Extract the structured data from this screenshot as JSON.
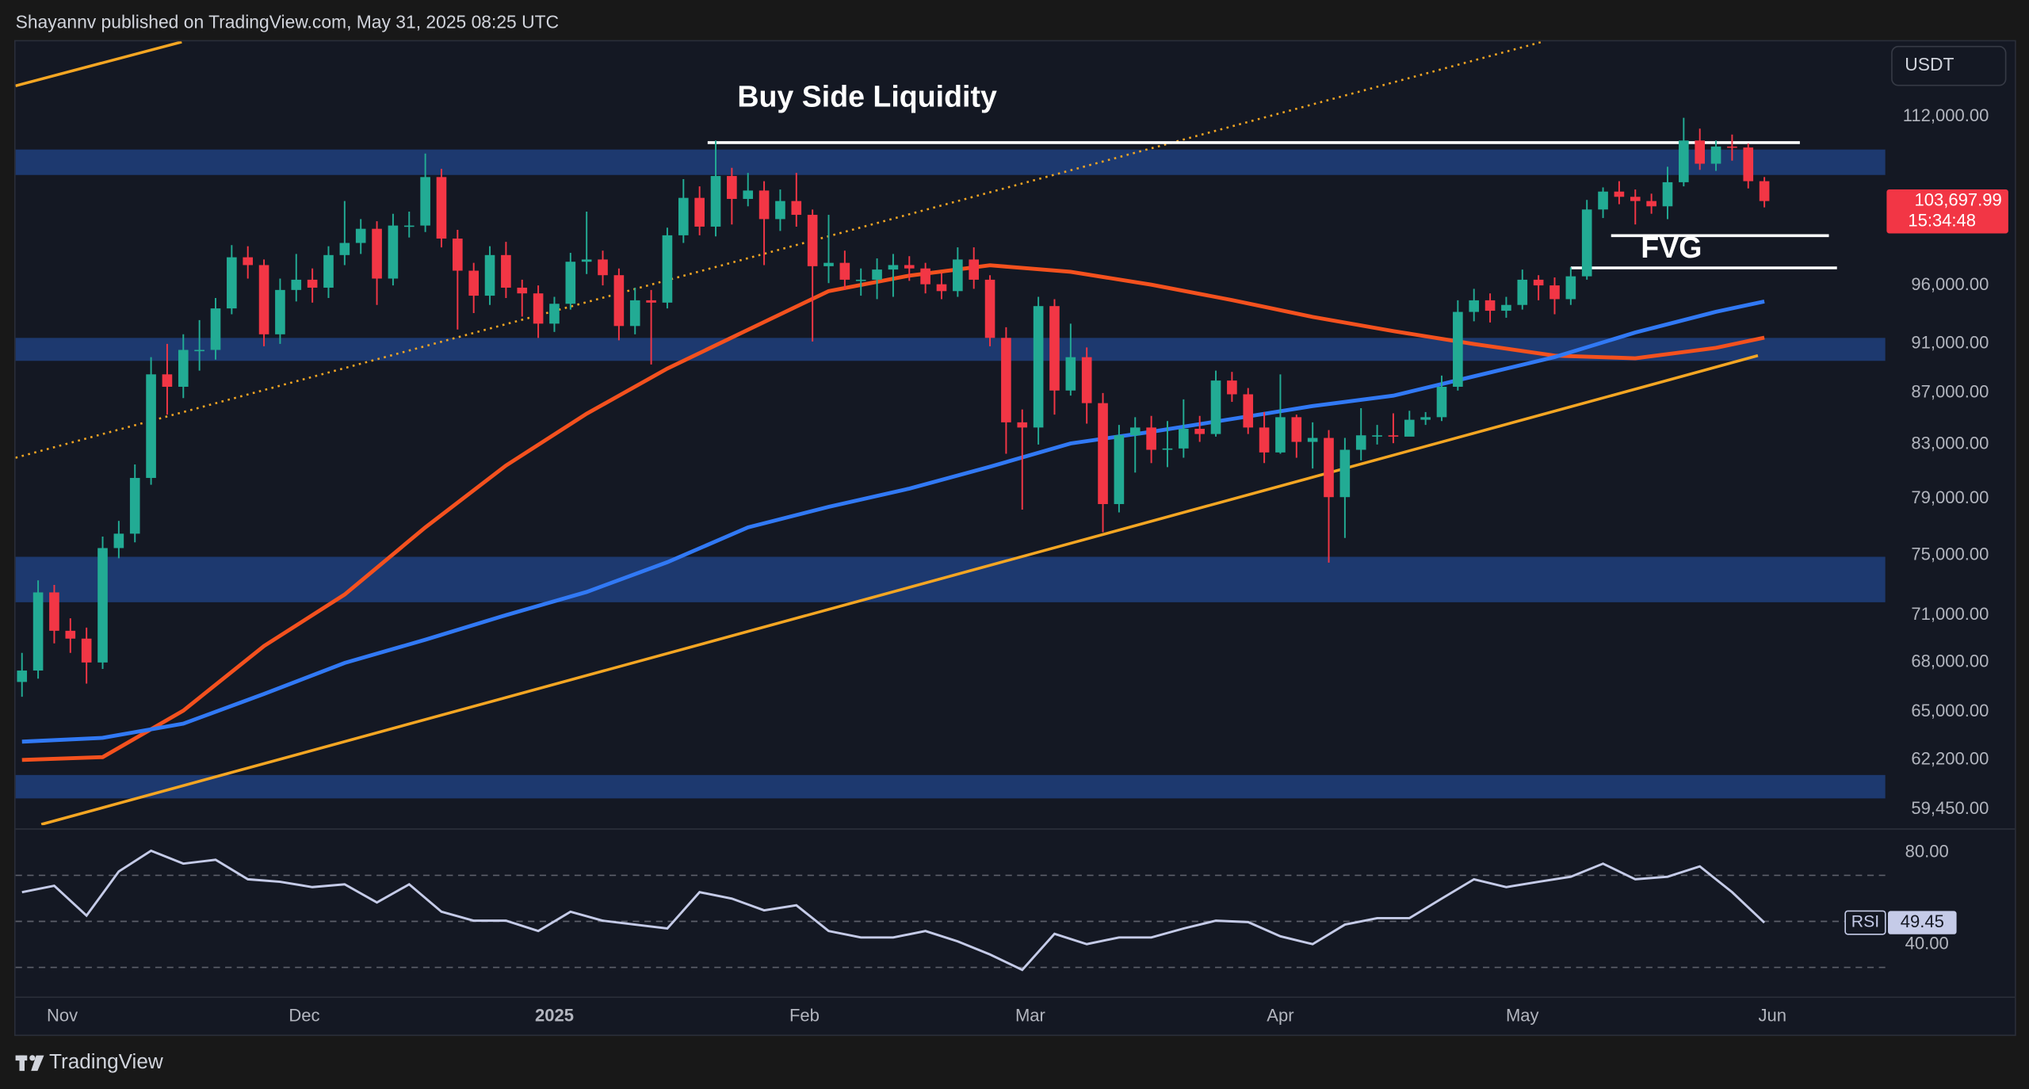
{
  "header": {
    "byline": "Shayannv published on TradingView.com, May 31, 2025 08:25 UTC",
    "currency": "USDT"
  },
  "chart_data": [
    {
      "type": "candlestick",
      "log_scale": true,
      "up_color": "#22ab94",
      "down_color": "#f23645",
      "x": [
        -5,
        -3,
        -1,
        1,
        3,
        5,
        7,
        9,
        11,
        13,
        15,
        17,
        19,
        21,
        23,
        25,
        27,
        29,
        31,
        33,
        35,
        37,
        39,
        41,
        43,
        45,
        47,
        49,
        51,
        53,
        55,
        57,
        59,
        61,
        63,
        65,
        67,
        69,
        71,
        73,
        75,
        77,
        79,
        81,
        83,
        85,
        87,
        89,
        91,
        93,
        95,
        97,
        99,
        101,
        103,
        105,
        107,
        109,
        111,
        113,
        115,
        117,
        119,
        121,
        123,
        125,
        127,
        129,
        131,
        133,
        135,
        137,
        139,
        141,
        143,
        145,
        147,
        149,
        151,
        153,
        155,
        157,
        159,
        161,
        163,
        165,
        167,
        169,
        171,
        173,
        175,
        177,
        179,
        181,
        183,
        185,
        187,
        189,
        191,
        193,
        195,
        197,
        199,
        201,
        203,
        205,
        207,
        209,
        211
      ],
      "open": [
        66800,
        67500,
        72500,
        70000,
        69500,
        68000,
        75500,
        76500,
        80500,
        88500,
        87500,
        90500,
        90500,
        94000,
        98500,
        97800,
        91800,
        95600,
        96500,
        95800,
        98700,
        99800,
        101100,
        96600,
        101400,
        101400,
        106000,
        100200,
        97300,
        95100,
        98700,
        95800,
        95300,
        92700,
        94400,
        98100,
        98300,
        96900,
        92500,
        94700,
        94500,
        100500,
        104000,
        101300,
        106100,
        103900,
        104700,
        102000,
        103700,
        102400,
        97700,
        98000,
        96500,
        96500,
        97400,
        97800,
        97500,
        96100,
        95500,
        98300,
        96500,
        91500,
        84700,
        84300,
        94200,
        87200,
        89900,
        86200,
        78600,
        83700,
        84300,
        82600,
        82700,
        84200,
        83800,
        88000,
        86900,
        84300,
        82400,
        85100,
        83200,
        83500,
        79100,
        82600,
        83700,
        83700,
        83600,
        84900,
        85100,
        87500,
        93700,
        94700,
        93800,
        94300,
        96500,
        96000,
        94800,
        96800,
        102900,
        104600,
        104100,
        103700,
        103200,
        105500,
        109600,
        107300,
        109000,
        108900,
        105600
      ],
      "high": [
        68600,
        73300,
        73000,
        70800,
        70200,
        76300,
        77400,
        81500,
        89900,
        91000,
        91800,
        93000,
        94900,
        99600,
        99500,
        98300,
        96600,
        98800,
        97500,
        99500,
        103700,
        102000,
        101800,
        102500,
        102700,
        108300,
        106800,
        101000,
        98000,
        99500,
        99900,
        96500,
        96000,
        95000,
        98900,
        102700,
        99100,
        97500,
        95800,
        95600,
        101200,
        105800,
        105100,
        109600,
        106900,
        106400,
        105600,
        104800,
        106400,
        102900,
        102400,
        99100,
        97500,
        98400,
        98800,
        98600,
        98000,
        97100,
        99400,
        99400,
        96900,
        92400,
        85700,
        95000,
        94800,
        92700,
        90700,
        87000,
        84500,
        85100,
        85200,
        84800,
        86500,
        85200,
        88800,
        88700,
        87400,
        85500,
        88500,
        85300,
        84700,
        84100,
        83500,
        85800,
        84500,
        85400,
        85600,
        85500,
        88400,
        94700,
        95700,
        95300,
        95000,
        97400,
        96900,
        96700,
        97600,
        103800,
        105000,
        105600,
        104800,
        104400,
        107000,
        111900,
        110800,
        109600,
        110200,
        109300,
        106000
      ],
      "low": [
        65900,
        67000,
        69200,
        68600,
        66700,
        67600,
        74800,
        75900,
        80000,
        85300,
        86600,
        88800,
        89700,
        93500,
        96600,
        90800,
        91000,
        94600,
        94500,
        94900,
        97800,
        98800,
        94300,
        96000,
        100300,
        100800,
        99400,
        92200,
        93600,
        94300,
        94900,
        93300,
        91500,
        92000,
        93900,
        97000,
        96000,
        91300,
        91800,
        89300,
        94000,
        99800,
        100500,
        100400,
        101500,
        103200,
        97800,
        100900,
        101300,
        91200,
        96200,
        95600,
        95100,
        94800,
        95000,
        96400,
        95300,
        94800,
        95000,
        95700,
        90800,
        82300,
        78200,
        83000,
        85300,
        86800,
        84600,
        76600,
        78000,
        80900,
        81600,
        81300,
        82000,
        83200,
        83600,
        86300,
        83800,
        81600,
        82300,
        82000,
        81200,
        74500,
        76200,
        81800,
        83000,
        83100,
        83900,
        84500,
        84800,
        87200,
        92900,
        92800,
        93200,
        93900,
        94700,
        93500,
        94300,
        96500,
        102100,
        103400,
        101500,
        102500,
        102000,
        105100,
        106700,
        106600,
        107600,
        104900,
        103100
      ],
      "close": [
        67500,
        72500,
        70000,
        69500,
        68000,
        75500,
        76500,
        80500,
        88500,
        87500,
        90500,
        90500,
        94000,
        98500,
        97800,
        91800,
        95600,
        96500,
        95800,
        98700,
        99800,
        101100,
        96600,
        101400,
        101400,
        106000,
        100200,
        97300,
        95100,
        98700,
        95800,
        95300,
        92700,
        94400,
        98100,
        98300,
        96900,
        92500,
        94700,
        94500,
        100500,
        104000,
        101300,
        106100,
        103900,
        104700,
        102000,
        103700,
        102400,
        97700,
        98000,
        96500,
        96500,
        97400,
        97800,
        97500,
        96100,
        95500,
        98300,
        96500,
        91500,
        84700,
        84300,
        94200,
        87200,
        89900,
        86200,
        78600,
        83700,
        84300,
        82600,
        82700,
        84200,
        83800,
        88000,
        86900,
        84300,
        82400,
        85100,
        83200,
        83500,
        79100,
        82600,
        83700,
        83700,
        83600,
        84900,
        85100,
        87500,
        93700,
        94700,
        93800,
        94300,
        96500,
        96000,
        94800,
        96800,
        102900,
        104600,
        104100,
        103700,
        103200,
        105500,
        109600,
        107300,
        109000,
        108900,
        105600,
        103697.99
      ],
      "xlim": [
        -5.8,
        226
      ],
      "xticks": [
        {
          "value": 0,
          "label": "Nov"
        },
        {
          "value": 30,
          "label": "Dec"
        },
        {
          "value": 61,
          "label": "2025"
        },
        {
          "value": 92,
          "label": "Feb"
        },
        {
          "value": 120,
          "label": "Mar"
        },
        {
          "value": 151,
          "label": "Apr"
        },
        {
          "value": 181,
          "label": "May"
        },
        {
          "value": 212,
          "label": "Jun"
        }
      ],
      "ylim": [
        58600,
        120000
      ],
      "yticks": [
        {
          "value": 112000,
          "label": "112,000.00"
        },
        {
          "value": 96000,
          "label": "96,000.00"
        },
        {
          "value": 91000,
          "label": "91,000.00"
        },
        {
          "value": 87000,
          "label": "87,000.00"
        },
        {
          "value": 83000,
          "label": "83,000.00"
        },
        {
          "value": 79000,
          "label": "79,000.00"
        },
        {
          "value": 75000,
          "label": "75,000.00"
        },
        {
          "value": 71000,
          "label": "71,000.00"
        },
        {
          "value": 68000,
          "label": "68,000.00"
        },
        {
          "value": 65000,
          "label": "65,000.00"
        },
        {
          "value": 62200,
          "label": "62,200.00"
        },
        {
          "value": 59450,
          "label": "59,450.00"
        }
      ],
      "grid": false,
      "moving_averages": [
        {
          "color": "#f4511e",
          "x": [
            -5,
            5,
            15,
            25,
            35,
            45,
            55,
            65,
            75,
            85,
            95,
            105,
            115,
            125,
            135,
            145,
            155,
            165,
            175,
            185,
            195,
            205,
            211
          ],
          "values": [
            62200,
            62360,
            65070,
            69030,
            72360,
            76940,
            81420,
            85370,
            88970,
            92180,
            95500,
            96860,
            97780,
            97200,
            96060,
            94720,
            93270,
            92070,
            90990,
            90030,
            89810,
            90670,
            91520
          ]
        },
        {
          "color": "#3179f5",
          "x": [
            -5,
            5,
            15,
            25,
            35,
            45,
            55,
            65,
            75,
            85,
            95,
            105,
            115,
            125,
            135,
            145,
            155,
            165,
            175,
            185,
            195,
            205,
            211
          ],
          "values": [
            63250,
            63470,
            64300,
            66070,
            67970,
            69430,
            71010,
            72530,
            74530,
            76940,
            78400,
            79720,
            81330,
            83080,
            83970,
            84960,
            85970,
            86790,
            88340,
            89910,
            91950,
            93710,
            94600
          ]
        }
      ],
      "zones": [
        {
          "color": "#1e3d78",
          "range": [
            106200,
            108700
          ]
        },
        {
          "color": "#1e3d78",
          "range": [
            89600,
            91500
          ]
        },
        {
          "color": "#1e3d78",
          "range": [
            71850,
            74900
          ]
        },
        {
          "color": "#1e3d78",
          "range": [
            60050,
            61350
          ]
        }
      ],
      "trendlines": [
        {
          "color": "#f5a623",
          "style": "solid",
          "x": [
            -2.6,
            210.2
          ],
          "y": [
            58640,
            90030
          ]
        },
        {
          "color": "#f5a623",
          "style": "solid",
          "x": [
            -5.8,
            14.8
          ],
          "y": [
            115220,
            119940
          ]
        },
        {
          "color": "#f5a623",
          "style": "dotted",
          "x": [
            -5.8,
            183.4
          ],
          "y": [
            82000,
            119940
          ]
        },
        {
          "color": "#ffffff",
          "style": "solid",
          "x": [
            80,
            215.4
          ],
          "y": [
            109390,
            109390
          ],
          "label": "Buy Side Liquidity",
          "label_side": "above"
        },
        {
          "color": "#ffffff",
          "style": "solid",
          "x": [
            192,
            219
          ],
          "y": [
            100470,
            100470
          ],
          "label": "FVG",
          "label_side": "below"
        },
        {
          "color": "#ffffff",
          "style": "solid",
          "x": [
            187,
            220
          ],
          "y": [
            97550,
            97550
          ]
        }
      ],
      "last_price": {
        "value": 103697.99,
        "label": "103,697.99"
      },
      "countdown": "15:34:48",
      "badge_color": "#f23645"
    },
    {
      "type": "line",
      "series": [
        {
          "name": "RSI",
          "color": "#c5cbe8",
          "x": [
            -5,
            -1,
            3,
            7,
            11,
            15,
            19,
            23,
            27,
            31,
            35,
            39,
            43,
            47,
            51,
            55,
            59,
            63,
            67,
            71,
            75,
            79,
            83,
            87,
            91,
            95,
            99,
            103,
            107,
            111,
            115,
            119,
            123,
            127,
            131,
            135,
            139,
            143,
            147,
            151,
            155,
            159,
            163,
            167,
            171,
            175,
            179,
            183,
            187,
            191,
            195,
            199,
            203,
            207,
            211
          ],
          "values": [
            62.7,
            65.5,
            52.5,
            71.7,
            80.7,
            75.1,
            76.8,
            68.3,
            67.2,
            64.9,
            66.1,
            58.2,
            66.1,
            54.2,
            50.3,
            50.3,
            45.8,
            54.2,
            50.3,
            48.6,
            46.9,
            62.7,
            59.9,
            54.8,
            57.0,
            45.8,
            43.0,
            43.0,
            45.8,
            41.3,
            35.6,
            28.9,
            44.6,
            40.1,
            43.0,
            43.0,
            46.9,
            50.3,
            49.7,
            43.5,
            40.1,
            48.6,
            51.4,
            51.4,
            59.9,
            68.3,
            64.9,
            67.2,
            69.4,
            75.1,
            68.3,
            69.4,
            73.9,
            62.7,
            49.45
          ]
        }
      ],
      "xlim": [
        -5.8,
        226
      ],
      "ylim": [
        17.6,
        87.9
      ],
      "yticks": [
        {
          "value": 80,
          "label": "80.00"
        },
        {
          "value": 40,
          "label": "40.00"
        }
      ],
      "levels": [
        70,
        50,
        30
      ]
    }
  ],
  "footer": {
    "brand": "TradingView"
  }
}
